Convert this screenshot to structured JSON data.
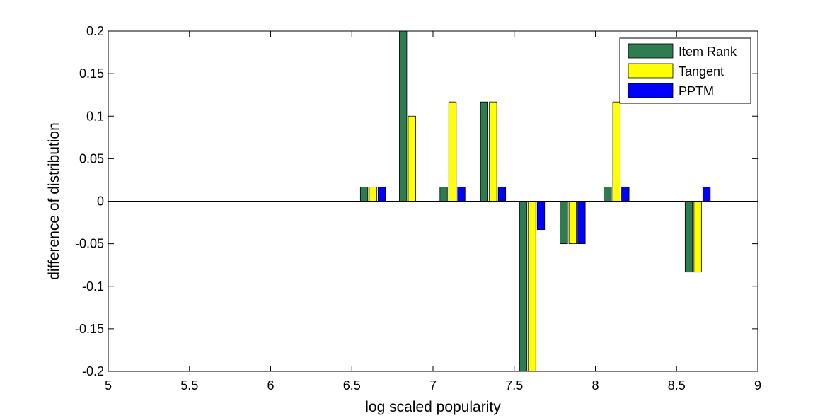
{
  "chart_data": {
    "type": "bar",
    "title": "",
    "xlabel": "log scaled popularity",
    "ylabel": "difference of distribution",
    "xlim": [
      5,
      9
    ],
    "ylim": [
      -0.2,
      0.2
    ],
    "xticks": [
      5,
      5.5,
      6,
      6.5,
      7,
      7.5,
      8,
      8.5,
      9
    ],
    "xtick_labels": [
      "5",
      "5.5",
      "6",
      "6.5",
      "7",
      "7.5",
      "8",
      "8.5",
      "9"
    ],
    "yticks": [
      -0.2,
      -0.15,
      -0.1,
      -0.05,
      0,
      0.05,
      0.1,
      0.15,
      0.2
    ],
    "ytick_labels": [
      "-0.2",
      "-0.15",
      "-0.1",
      "-0.05",
      "0",
      "0.05",
      "0.1",
      "0.15",
      "0.2"
    ],
    "x": [
      6.63,
      6.87,
      7.12,
      7.37,
      7.61,
      7.86,
      8.13,
      8.63
    ],
    "series": [
      {
        "name": "Item Rank",
        "color": "#2e7d50",
        "values": [
          0.0167,
          0.2,
          0.0167,
          0.1167,
          -0.2,
          -0.05,
          0.0167,
          -0.0833
        ]
      },
      {
        "name": "Tangent",
        "color": "#ffff00",
        "values": [
          0.0167,
          0.1,
          0.1167,
          0.1167,
          -0.2,
          -0.05,
          0.1167,
          -0.0833
        ]
      },
      {
        "name": "PPTM",
        "color": "#0000ff",
        "values": [
          0.0167,
          0,
          0.0167,
          0.0167,
          -0.0333,
          -0.05,
          0.0167,
          0.0167
        ]
      }
    ],
    "legend_position": "top-right",
    "grid": false
  }
}
